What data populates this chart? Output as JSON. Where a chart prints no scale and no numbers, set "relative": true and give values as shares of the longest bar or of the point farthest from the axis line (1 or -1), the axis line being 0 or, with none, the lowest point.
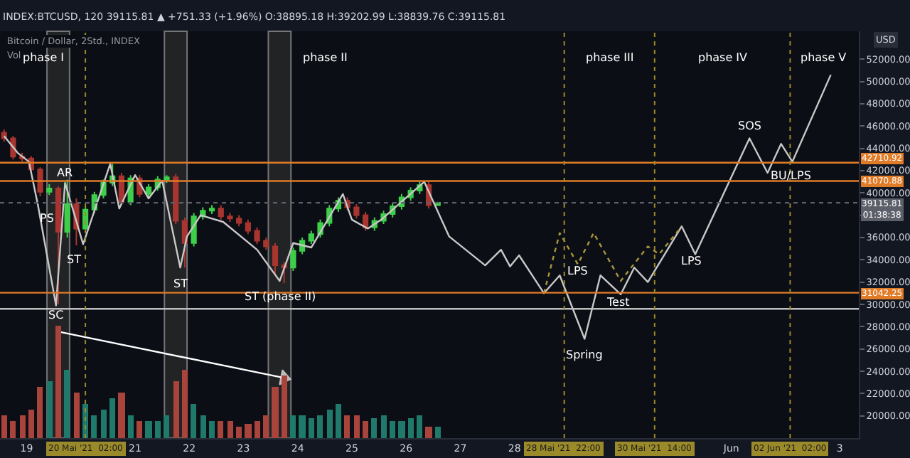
{
  "chart_data": [
    {
      "type": "candlestick",
      "subtitle": "INDEX:BTCUSD, 120 39115.81 ▲ +751.33 (+1.96%) O:38895.18 H:39202.99 L:38839.76 C:39115.81",
      "ylabel": "USD",
      "x": [
        "2021-05-18T14:00",
        "2021-05-18T18:00",
        "2021-05-18T22:00",
        "2021-05-19T02:00",
        "2021-05-19T06:00",
        "2021-05-19T10:00",
        "2021-05-19T14:00",
        "2021-05-19T18:00",
        "2021-05-19T22:00",
        "2021-05-20T02:00",
        "2021-05-20T06:00",
        "2021-05-20T10:00",
        "2021-05-20T14:00",
        "2021-05-20T18:00",
        "2021-05-20T22:00",
        "2021-05-21T02:00",
        "2021-05-21T06:00",
        "2021-05-21T10:00",
        "2021-05-21T14:00",
        "2021-05-21T18:00",
        "2021-05-21T22:00",
        "2021-05-22T02:00",
        "2021-05-22T06:00",
        "2021-05-22T10:00",
        "2021-05-22T14:00",
        "2021-05-22T18:00",
        "2021-05-22T22:00",
        "2021-05-23T02:00",
        "2021-05-23T06:00",
        "2021-05-23T10:00",
        "2021-05-23T14:00",
        "2021-05-23T18:00",
        "2021-05-23T22:00",
        "2021-05-24T02:00",
        "2021-05-24T06:00",
        "2021-05-24T10:00",
        "2021-05-24T14:00",
        "2021-05-24T18:00",
        "2021-05-24T22:00",
        "2021-05-25T02:00",
        "2021-05-25T06:00",
        "2021-05-25T10:00",
        "2021-05-25T14:00",
        "2021-05-25T18:00",
        "2021-05-25T22:00",
        "2021-05-26T02:00",
        "2021-05-26T06:00",
        "2021-05-26T10:00",
        "2021-05-26T14:00"
      ],
      "ohlc": [
        [
          45400,
          45700,
          44600,
          44900
        ],
        [
          44900,
          45100,
          43000,
          43250
        ],
        [
          43250,
          43600,
          42800,
          43100
        ],
        [
          43100,
          43300,
          41800,
          42100
        ],
        [
          42100,
          42300,
          39700,
          40100
        ],
        [
          40100,
          40800,
          39800,
          40400
        ],
        [
          40400,
          40600,
          30000,
          36500
        ],
        [
          36500,
          41200,
          36000,
          39000
        ],
        [
          39000,
          39500,
          35300,
          36800
        ],
        [
          36800,
          38800,
          36500,
          38500
        ],
        [
          38500,
          40100,
          38200,
          39800
        ],
        [
          39800,
          41200,
          39500,
          40900
        ],
        [
          40900,
          42600,
          40600,
          41500
        ],
        [
          41500,
          41800,
          38900,
          39200
        ],
        [
          39200,
          41600,
          38900,
          41300
        ],
        [
          41300,
          41600,
          39600,
          39900
        ],
        [
          39900,
          40800,
          39600,
          40500
        ],
        [
          40500,
          41500,
          40200,
          41200
        ],
        [
          41200,
          41600,
          40900,
          41400
        ],
        [
          41400,
          41700,
          37200,
          37500
        ],
        [
          37500,
          37800,
          33300,
          35500
        ],
        [
          35500,
          38200,
          35200,
          37900
        ],
        [
          37900,
          38700,
          37600,
          38400
        ],
        [
          38400,
          38900,
          38100,
          38600
        ],
        [
          38600,
          38900,
          37600,
          37900
        ],
        [
          37900,
          38200,
          37400,
          37700
        ],
        [
          37700,
          38000,
          37000,
          37300
        ],
        [
          37300,
          37600,
          36300,
          36600
        ],
        [
          36600,
          36900,
          35400,
          35700
        ],
        [
          35700,
          36000,
          34900,
          35200
        ],
        [
          35200,
          35500,
          32600,
          33500
        ],
        [
          33500,
          33800,
          31900,
          33300
        ],
        [
          33300,
          35100,
          33000,
          34800
        ],
        [
          34800,
          36000,
          34500,
          35700
        ],
        [
          35700,
          36600,
          35400,
          36300
        ],
        [
          36300,
          37600,
          36000,
          37300
        ],
        [
          37300,
          38900,
          37000,
          38600
        ],
        [
          38600,
          39600,
          38300,
          39300
        ],
        [
          39300,
          39600,
          38400,
          38700
        ],
        [
          38700,
          39000,
          37700,
          38000
        ],
        [
          38000,
          38300,
          36600,
          36900
        ],
        [
          36900,
          37800,
          36600,
          37500
        ],
        [
          37500,
          38400,
          37200,
          38100
        ],
        [
          38100,
          39100,
          37800,
          38800
        ],
        [
          38800,
          39900,
          38500,
          39600
        ],
        [
          39600,
          40500,
          39300,
          40200
        ],
        [
          40200,
          41000,
          39900,
          40700
        ],
        [
          40700,
          41000,
          38600,
          38900
        ],
        [
          38895.18,
          39202.99,
          38839.76,
          39115.81
        ]
      ],
      "colors": [
        "#a8352f",
        "#a8352f",
        "#a8352f",
        "#a8352f",
        "#a8352f",
        "#3ecf4a",
        "#a8352f",
        "#3ecf4a",
        "#a8352f",
        "#3ecf4a",
        "#3ecf4a",
        "#3ecf4a",
        "#3ecf4a",
        "#a8352f",
        "#3ecf4a",
        "#a8352f",
        "#3ecf4a",
        "#3ecf4a",
        "#3ecf4a",
        "#a8352f",
        "#a8352f",
        "#3ecf4a",
        "#3ecf4a",
        "#3ecf4a",
        "#a8352f",
        "#a8352f",
        "#a8352f",
        "#a8352f",
        "#a8352f",
        "#a8352f",
        "#a8352f",
        "#a8352f",
        "#3ecf4a",
        "#3ecf4a",
        "#3ecf4a",
        "#3ecf4a",
        "#3ecf4a",
        "#3ecf4a",
        "#a8352f",
        "#a8352f",
        "#a8352f",
        "#3ecf4a",
        "#3ecf4a",
        "#3ecf4a",
        "#3ecf4a",
        "#3ecf4a",
        "#3ecf4a",
        "#a8352f",
        "#3ecf4a"
      ],
      "series": [
        {
          "type": "line",
          "color": "#c8c8c8",
          "line_style": "solid",
          "x": [
            "2021-05-18T14:00",
            "2021-05-18T20:00",
            "2021-05-19T01:00",
            "2021-05-19T05:00",
            "2021-05-19T13:00",
            "2021-05-19T17:00",
            "2021-05-20T01:00",
            "2021-05-20T13:00",
            "2021-05-20T17:00",
            "2021-05-21T00:00",
            "2021-05-21T06:00",
            "2021-05-21T12:00",
            "2021-05-21T20:00",
            "2021-05-21T23:00",
            "2021-05-22T05:00",
            "2021-05-22T15:00",
            "2021-05-23T06:00",
            "2021-05-23T16:00",
            "2021-05-23T22:00",
            "2021-05-24T06:00",
            "2021-05-24T20:00",
            "2021-05-25T00:00",
            "2021-05-25T07:00",
            "2021-05-25T13:00",
            "2021-05-26T08:00",
            "2021-05-26T19:00",
            "2021-05-27T11:00",
            "2021-05-27T18:00",
            "2021-05-27T22:00",
            "2021-05-28T02:00",
            "2021-05-28T13:00",
            "2021-05-28T20:00",
            "2021-05-29T07:00",
            "2021-05-29T14:00",
            "2021-05-29T23:00",
            "2021-05-30T05:00",
            "2021-05-30T11:00",
            "2021-05-31T02:00",
            "2021-05-31T08:00",
            "2021-06-01T08:00",
            "2021-06-01T16:00",
            "2021-06-01T22:00",
            "2021-06-02T03:00",
            "2021-06-02T20:00"
          ],
          "values": [
            45100,
            43600,
            42800,
            38900,
            29900,
            40900,
            35400,
            42600,
            38600,
            41600,
            39500,
            41100,
            33300,
            36100,
            38000,
            37400,
            34900,
            32100,
            35500,
            35100,
            39900,
            37600,
            36800,
            37600,
            41000,
            36100,
            33500,
            34900,
            33400,
            34400,
            31000,
            32600,
            26900,
            32600,
            30900,
            33300,
            32000,
            37000,
            34500,
            44900,
            41800,
            44400,
            42800,
            50600
          ]
        },
        {
          "type": "line",
          "color": "#a8973c",
          "line_style": "dotted",
          "x": [
            "2021-05-28T13:00",
            "2021-05-28T20:00",
            "2021-05-29T04:00",
            "2021-05-29T11:00",
            "2021-05-29T23:00",
            "2021-05-30T11:00",
            "2021-05-30T16:00",
            "2021-05-31T02:00"
          ],
          "values": [
            31000,
            36400,
            33600,
            36400,
            32100,
            35200,
            34500,
            37000
          ]
        },
        {
          "type": "line",
          "marker": "triangle",
          "color": "#ffffff",
          "line_style": "solid",
          "x": [
            "2021-05-19T13:00",
            "2021-05-23T18:00"
          ],
          "values": [
            27600,
            23400
          ]
        }
      ],
      "ref_lines": [
        {
          "axis": "y",
          "value": 42710.92,
          "label": "42710.92",
          "color": "#e07b27",
          "line_style": "solid"
        },
        {
          "axis": "y",
          "value": 41070.88,
          "label": "41070.88",
          "color": "#e07b27",
          "line_style": "solid"
        },
        {
          "axis": "y",
          "value": 39115.81,
          "label": "39115.81\n01:38:38",
          "color": "#5d606b",
          "line_style": "dotted"
        },
        {
          "axis": "y",
          "value": 31042.25,
          "label": "31042.25",
          "color": "#e07b27",
          "line_style": "solid"
        },
        {
          "axis": "y",
          "value": 29600,
          "label": null,
          "color": "#bdbdbd",
          "line_style": "solid"
        },
        {
          "axis": "x",
          "value": "2021-05-20T02:00",
          "label": "20 Mai '21  02:00",
          "color": "#9b8a2a",
          "line_style": "dotted"
        },
        {
          "axis": "x",
          "value": "2021-05-28T22:00",
          "label": "28 Mai '21  22:00",
          "color": "#9b8a2a",
          "line_style": "dotted"
        },
        {
          "axis": "x",
          "value": "2021-05-30T14:00",
          "label": "30 Mai '21  14:00",
          "color": "#9b8a2a",
          "line_style": "dotted"
        },
        {
          "axis": "x",
          "value": "2021-06-02T02:00",
          "label": "02 Jun '21  02:00",
          "color": "#9b8a2a",
          "line_style": "dotted"
        }
      ],
      "bands": [
        {
          "axis": "x",
          "from": "2021-05-19T09:00",
          "to": "2021-05-19T19:00",
          "label": null,
          "color": "#2c2c2c"
        },
        {
          "axis": "x",
          "from": "2021-05-21T13:00",
          "to": "2021-05-21T23:00",
          "label": null,
          "color": "#2c2c2c"
        },
        {
          "axis": "x",
          "from": "2021-05-23T11:00",
          "to": "2021-05-23T21:00",
          "label": null,
          "color": "#2c2c2c"
        }
      ],
      "annotations": [
        "Bitcoin / Dollar, 2Std., INDEX",
        "phase I",
        "phase II",
        "phase III",
        "phase IV",
        "phase V",
        {
          "text": "PS",
          "x": "2021-05-19T09:00",
          "y": 37750
        },
        {
          "text": "SC",
          "x": "2021-05-19T13:00",
          "y": 29000
        },
        {
          "text": "AR",
          "x": "2021-05-19T17:00",
          "y": 41750
        },
        {
          "text": "ST",
          "x": "2021-05-19T21:00",
          "y": 34000
        },
        {
          "text": "ST",
          "x": "2021-05-21T20:00",
          "y": 33300
        },
        {
          "text": "ST (phase II)",
          "x": "2021-05-23T16:00",
          "y": 32100
        },
        {
          "text": "SOS",
          "x": "2021-06-01T08:00",
          "y": 44900
        },
        {
          "text": "BU/LPS",
          "x": "2021-06-02T02:00",
          "y": 41600
        },
        {
          "text": "LPS",
          "x": "2021-05-29T04:00",
          "y": 33000
        },
        {
          "text": "Test",
          "x": "2021-05-29T22:00",
          "y": 30250
        },
        {
          "text": "Spring",
          "x": "2021-05-29T07:00",
          "y": 26900
        },
        {
          "text": "LPS",
          "x": "2021-05-31T06:00",
          "y": 33900
        }
      ],
      "xlim": [
        "2021-05-18T12:12",
        "2021-06-03T08:24"
      ],
      "xticks": [
        {
          "value": "2021-05-19",
          "label": "19"
        },
        {
          "value": "2021-05-21",
          "label": "21"
        },
        {
          "value": "2021-05-22",
          "label": "22"
        },
        {
          "value": "2021-05-23",
          "label": "23"
        },
        {
          "value": "2021-05-24",
          "label": "24"
        },
        {
          "value": "2021-05-25",
          "label": "25"
        },
        {
          "value": "2021-05-26",
          "label": "26"
        },
        {
          "value": "2021-05-27",
          "label": "27"
        },
        {
          "value": "2021-05-28",
          "label": "28"
        },
        {
          "value": "2021-06-01",
          "label": "Jun"
        },
        {
          "value": "2021-06-03",
          "label": "3"
        }
      ],
      "ylim": [
        18000,
        54500
      ],
      "yticks": [
        {
          "value": 20000,
          "label": "20000.00"
        },
        {
          "value": 22000,
          "label": "22000.00"
        },
        {
          "value": 24000,
          "label": "24000.00"
        },
        {
          "value": 26000,
          "label": "26000.00"
        },
        {
          "value": 28000,
          "label": "28000.00"
        },
        {
          "value": 30000,
          "label": "30000.00"
        },
        {
          "value": 32000,
          "label": "32000.00"
        },
        {
          "value": 34000,
          "label": "34000.00"
        },
        {
          "value": 36000,
          "label": "36000.00"
        },
        {
          "value": 38000,
          "label": null
        },
        {
          "value": 40000,
          "label": "40000.00"
        },
        {
          "value": 42000,
          "label": "42000.00"
        },
        {
          "value": 44000,
          "label": "44000.00"
        },
        {
          "value": 46000,
          "label": "46000.00"
        },
        {
          "value": 48000,
          "label": "48000.00"
        },
        {
          "value": 50000,
          "label": "50000.00"
        },
        {
          "value": 52000,
          "label": "52000.00"
        }
      ],
      "grid": false
    },
    {
      "type": "bar",
      "relative": true,
      "title": "Vol",
      "categories": [
        null,
        null,
        null,
        null,
        null,
        null,
        null,
        null,
        null,
        null,
        null,
        null,
        null,
        null,
        null,
        null,
        null,
        null,
        null,
        null,
        null,
        null,
        null,
        null,
        null,
        null,
        null,
        null,
        null,
        null,
        null,
        null,
        null,
        null,
        null,
        null,
        null,
        null,
        null,
        null,
        null,
        null,
        null,
        null,
        null,
        null,
        null,
        null,
        null
      ],
      "values": [
        0.2,
        0.15,
        0.2,
        0.25,
        0.45,
        0.5,
        1,
        0.6,
        0.4,
        0.3,
        0.2,
        0.25,
        0.35,
        0.4,
        0.2,
        0.15,
        0.15,
        0.15,
        0.2,
        0.5,
        0.6,
        0.3,
        0.2,
        0.15,
        0.15,
        0.15,
        0.1,
        0.12,
        0.15,
        0.2,
        0.45,
        0.55,
        0.2,
        0.2,
        0.18,
        0.2,
        0.25,
        0.3,
        0.2,
        0.2,
        0.15,
        0.18,
        0.2,
        0.15,
        0.15,
        0.18,
        0.2,
        0.1,
        0.1
      ],
      "colors": [
        "#a8443b",
        "#a8443b",
        "#a8443b",
        "#a8443b",
        "#a8443b",
        "#1f7a6b",
        "#a8443b",
        "#1f7a6b",
        "#a8443b",
        "#1f7a6b",
        "#1f7a6b",
        "#1f7a6b",
        "#1f7a6b",
        "#a8443b",
        "#1f7a6b",
        "#a8443b",
        "#1f7a6b",
        "#1f7a6b",
        "#1f7a6b",
        "#a8443b",
        "#a8443b",
        "#1f7a6b",
        "#1f7a6b",
        "#1f7a6b",
        "#a8443b",
        "#a8443b",
        "#a8443b",
        "#a8443b",
        "#a8443b",
        "#a8443b",
        "#a8443b",
        "#a8443b",
        "#1f7a6b",
        "#1f7a6b",
        "#1f7a6b",
        "#1f7a6b",
        "#1f7a6b",
        "#1f7a6b",
        "#a8443b",
        "#a8443b",
        "#a8443b",
        "#1f7a6b",
        "#1f7a6b",
        "#1f7a6b",
        "#1f7a6b",
        "#1f7a6b",
        "#1f7a6b",
        "#a8443b",
        "#1f7a6b"
      ]
    }
  ]
}
